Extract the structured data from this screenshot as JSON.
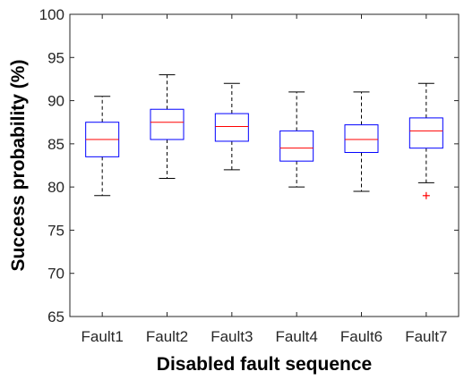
{
  "chart_data": {
    "type": "box",
    "title": "",
    "xlabel": "Disabled fault sequence",
    "ylabel": "Success probability (%)",
    "ylim": [
      65,
      100
    ],
    "yticks": [
      65,
      70,
      75,
      80,
      85,
      90,
      95,
      100
    ],
    "grid": false,
    "categories": [
      "Fault1",
      "Fault2",
      "Fault3",
      "Fault4",
      "Fault6",
      "Fault7"
    ],
    "boxes": [
      {
        "whisker_low": 79.0,
        "q1": 83.5,
        "median": 85.5,
        "q3": 87.5,
        "whisker_high": 90.5,
        "outliers": []
      },
      {
        "whisker_low": 81.0,
        "q1": 85.5,
        "median": 87.5,
        "q3": 89.0,
        "whisker_high": 93.0,
        "outliers": []
      },
      {
        "whisker_low": 82.0,
        "q1": 85.3,
        "median": 87.0,
        "q3": 88.5,
        "whisker_high": 92.0,
        "outliers": []
      },
      {
        "whisker_low": 80.0,
        "q1": 83.0,
        "median": 84.5,
        "q3": 86.5,
        "whisker_high": 91.0,
        "outliers": []
      },
      {
        "whisker_low": 79.5,
        "q1": 84.0,
        "median": 85.5,
        "q3": 87.2,
        "whisker_high": 91.0,
        "outliers": []
      },
      {
        "whisker_low": 80.5,
        "q1": 84.5,
        "median": 86.5,
        "q3": 88.0,
        "whisker_high": 92.0,
        "outliers": [
          79.0
        ]
      }
    ],
    "colors": {
      "box": "#0000ff",
      "median": "#ff0000",
      "whisker": "#000000",
      "outlier": "#ff0000",
      "axis": "#262626"
    }
  }
}
